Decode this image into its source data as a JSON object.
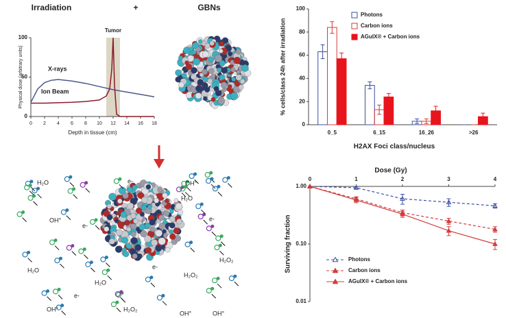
{
  "chart_data": [
    {
      "type": "line",
      "title": "Irradiation",
      "xlabel": "Depth in tissue (cm)",
      "ylabel": "Physical dose (arbitrary units)",
      "annotation": "Tumor",
      "shaded_region": [
        11,
        13
      ],
      "xlim": [
        0,
        18
      ],
      "xticks": [
        0,
        2,
        4,
        6,
        8,
        10,
        12,
        14,
        16,
        18
      ],
      "ylim": [
        0,
        100
      ],
      "yticks": [
        0,
        50,
        100
      ],
      "series": [
        {
          "name": "X-rays",
          "color": "#4a5a8a",
          "x": [
            0,
            1,
            2,
            3,
            4,
            6,
            8,
            10,
            12,
            14,
            16,
            18
          ],
          "values": [
            18,
            35,
            43,
            46,
            47,
            45,
            42,
            38,
            34,
            31,
            28,
            25
          ]
        },
        {
          "name": "Ion Beam",
          "color": "#8b1a2a",
          "x": [
            0,
            2,
            4,
            6,
            8,
            10,
            11,
            11.5,
            11.8,
            12,
            12.2,
            12.5,
            13,
            18
          ],
          "values": [
            17,
            17,
            17.5,
            18,
            19,
            21,
            26,
            35,
            60,
            100,
            40,
            3,
            0,
            0
          ]
        }
      ]
    },
    {
      "type": "bar",
      "xlabel": "H2AX Foci class/nucleus",
      "ylabel": "% cells/class 24h  after irradiation",
      "categories": [
        "0_5",
        "6_15",
        "16_26",
        ">26"
      ],
      "ylim": [
        0,
        100
      ],
      "yticks": [
        0,
        20,
        40,
        60,
        80,
        100
      ],
      "series": [
        {
          "name": "Photons",
          "color": "#3a4fa0",
          "fill": "none",
          "values": [
            63,
            34,
            3,
            0
          ],
          "errors": [
            6,
            3,
            2,
            0
          ]
        },
        {
          "name": "Carbon ions",
          "color": "#d43a3a",
          "fill": "none",
          "values": [
            84,
            13,
            3,
            0
          ],
          "errors": [
            5,
            4,
            2,
            0
          ]
        },
        {
          "name": "AGuIX® + Carbon ions",
          "color": "#e8141c",
          "fill": "#e8141c",
          "values": [
            57,
            24,
            12,
            7
          ],
          "errors": [
            5,
            3,
            4,
            3
          ]
        }
      ]
    },
    {
      "type": "scatter",
      "xlabel": "Dose (Gy)",
      "ylabel": "Surviving fraction",
      "log_y": true,
      "xlim": [
        0,
        4
      ],
      "xticks": [
        0,
        1,
        2,
        3,
        4
      ],
      "ylim": [
        0.01,
        1
      ],
      "yticks": [
        0.01,
        {
          "value": 0.1,
          "label": "0.10"
        },
        {
          "value": 1,
          "label": "1.00"
        }
      ],
      "x": [
        0,
        1,
        2,
        3,
        4
      ],
      "series": [
        {
          "name": "Photons",
          "color": "#3a4fa0",
          "fill": "none",
          "dash": true,
          "values": [
            1,
            0.95,
            0.61,
            0.53,
            0.46
          ],
          "errors": [
            0,
            0.04,
            0.12,
            0.08,
            0.04
          ]
        },
        {
          "name": "Carbon ions",
          "color": "#d43a3a",
          "fill": "#d43a3a",
          "dash": true,
          "values": [
            1,
            0.61,
            0.35,
            0.25,
            0.18
          ],
          "errors": [
            0,
            0.05,
            0.04,
            0.03,
            0.02
          ]
        },
        {
          "name": "AGuIX® + Carbon ions",
          "color": "#d43a3a",
          "fill": "#d43a3a",
          "dash": false,
          "values": [
            1,
            0.58,
            0.33,
            0.17,
            0.1
          ],
          "errors": [
            0,
            0.06,
            0.04,
            0.03,
            0.02
          ]
        }
      ]
    }
  ],
  "header": {
    "plus": "+",
    "gbns": "GBNs"
  },
  "diagram": {
    "labels": [
      "H₂O",
      "H₂O",
      "H₂O",
      "H₂O",
      "OH°",
      "OH°",
      "OH°",
      "OH°",
      "OH°",
      "e-",
      "e-",
      "e-",
      "e-",
      "e-",
      "H₂O₂",
      "H₂O₂",
      "H₂O₂"
    ]
  }
}
